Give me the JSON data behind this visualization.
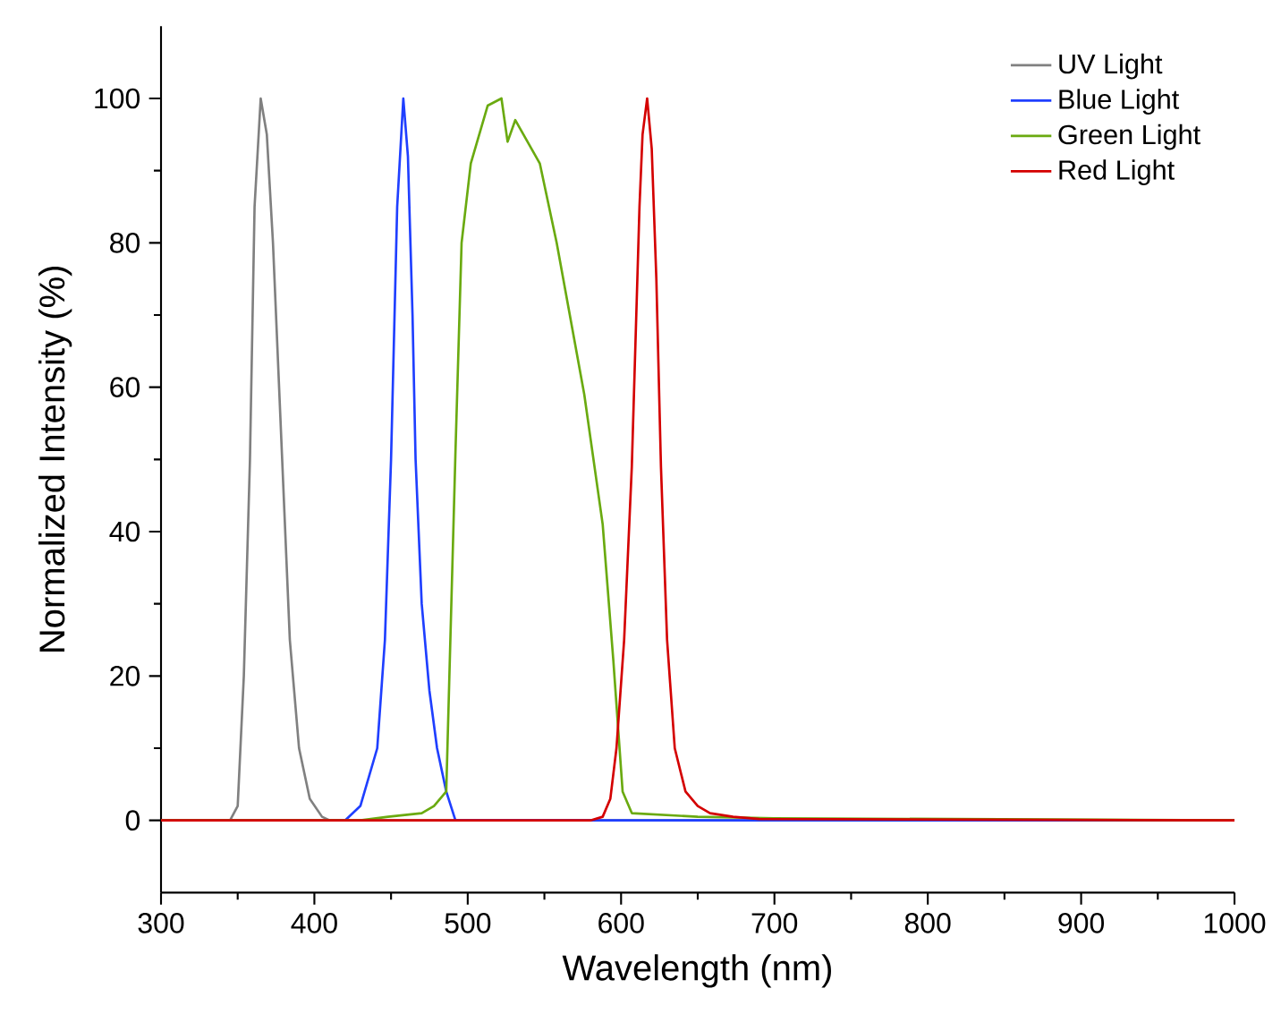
{
  "chart_data": {
    "type": "line",
    "xlabel": "Wavelength (nm)",
    "ylabel": "Normalized Intensity (%)",
    "xlim": [
      300,
      1000
    ],
    "ylim": [
      -10,
      110
    ],
    "xticks": [
      300,
      400,
      500,
      600,
      700,
      800,
      900,
      1000
    ],
    "yticks": [
      0,
      20,
      40,
      60,
      80,
      100
    ],
    "legend": "top right",
    "grid": false,
    "marker": "none",
    "line_style": "solid",
    "series": [
      {
        "name": "UV Light",
        "color": "#808080",
        "x": [
          300,
          345,
          350,
          354,
          358,
          361,
          365,
          369,
          373,
          379,
          384,
          390,
          397,
          405,
          410,
          1000
        ],
        "values": [
          0,
          0,
          2,
          20,
          50,
          85,
          100,
          95,
          80,
          50,
          25,
          10,
          3,
          0.5,
          0,
          0
        ]
      },
      {
        "name": "Blue Light",
        "color": "#1f3fff",
        "x": [
          300,
          420,
          430,
          441,
          446,
          450,
          454,
          458,
          461,
          464,
          466,
          470,
          475,
          480,
          486,
          492,
          1000
        ],
        "values": [
          0,
          0,
          2,
          10,
          25,
          50,
          85,
          100,
          92,
          70,
          50,
          30,
          18,
          10,
          4,
          0,
          0
        ]
      },
      {
        "name": "Green Light",
        "color": "#6aaa10",
        "x": [
          300,
          430,
          448,
          470,
          478,
          486,
          492,
          496,
          502,
          513,
          522,
          526,
          531,
          547,
          558,
          576,
          588,
          595,
          601,
          607,
          650,
          700,
          1000
        ],
        "values": [
          0,
          0,
          0.5,
          1,
          2,
          4,
          51,
          80,
          91,
          99,
          100,
          94,
          97,
          91,
          80,
          59,
          41,
          22,
          4,
          1,
          0.5,
          0.3,
          0
        ]
      },
      {
        "name": "Red Light",
        "color": "#d40000",
        "x": [
          300,
          580,
          588,
          593,
          597,
          602,
          607,
          612,
          614,
          617,
          620,
          623,
          626,
          630,
          635,
          642,
          650,
          658,
          673,
          690,
          1000
        ],
        "values": [
          0,
          0,
          0.5,
          3,
          10,
          25,
          49,
          85,
          95,
          100,
          93,
          75,
          49,
          25,
          10,
          4,
          2,
          1,
          0.5,
          0.2,
          0
        ]
      }
    ]
  }
}
